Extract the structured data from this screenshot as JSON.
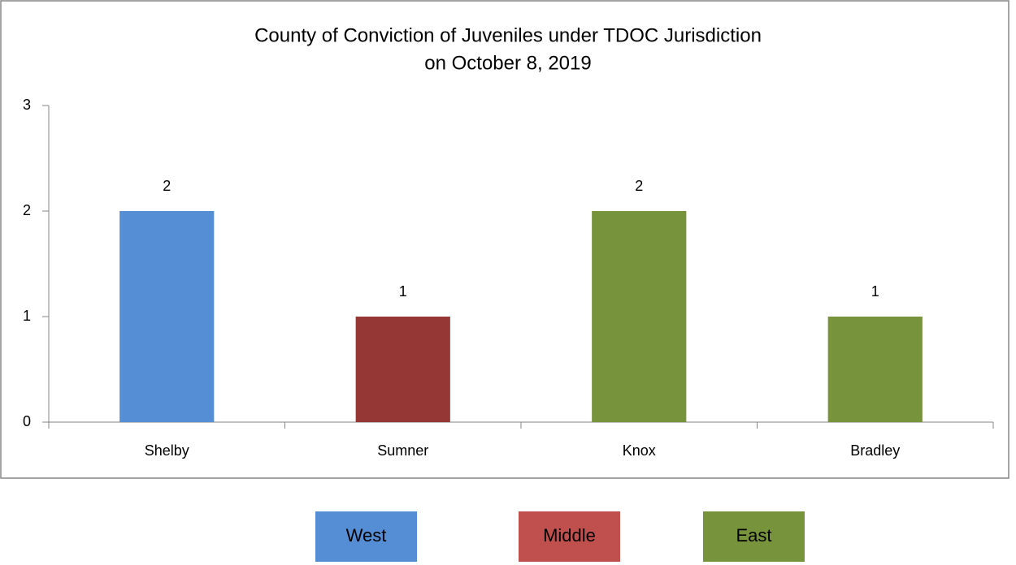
{
  "chart_data": {
    "type": "bar",
    "title": [
      "County of Conviction of Juveniles under TDOC Jurisdiction",
      "on October 8, 2019"
    ],
    "categories": [
      "Shelby",
      "Sumner",
      "Knox",
      "Bradley"
    ],
    "values": [
      2,
      1,
      2,
      1
    ],
    "colors": [
      "#558ed5",
      "#953735",
      "#77933c",
      "#77933c"
    ],
    "ylim": [
      0,
      3
    ],
    "yticks": [
      0,
      1,
      2,
      3
    ],
    "legend": [
      {
        "name": "West",
        "color": "#558ed5"
      },
      {
        "name": "Middle",
        "color": "#c0504d"
      },
      {
        "name": "East",
        "color": "#77933c"
      }
    ]
  }
}
